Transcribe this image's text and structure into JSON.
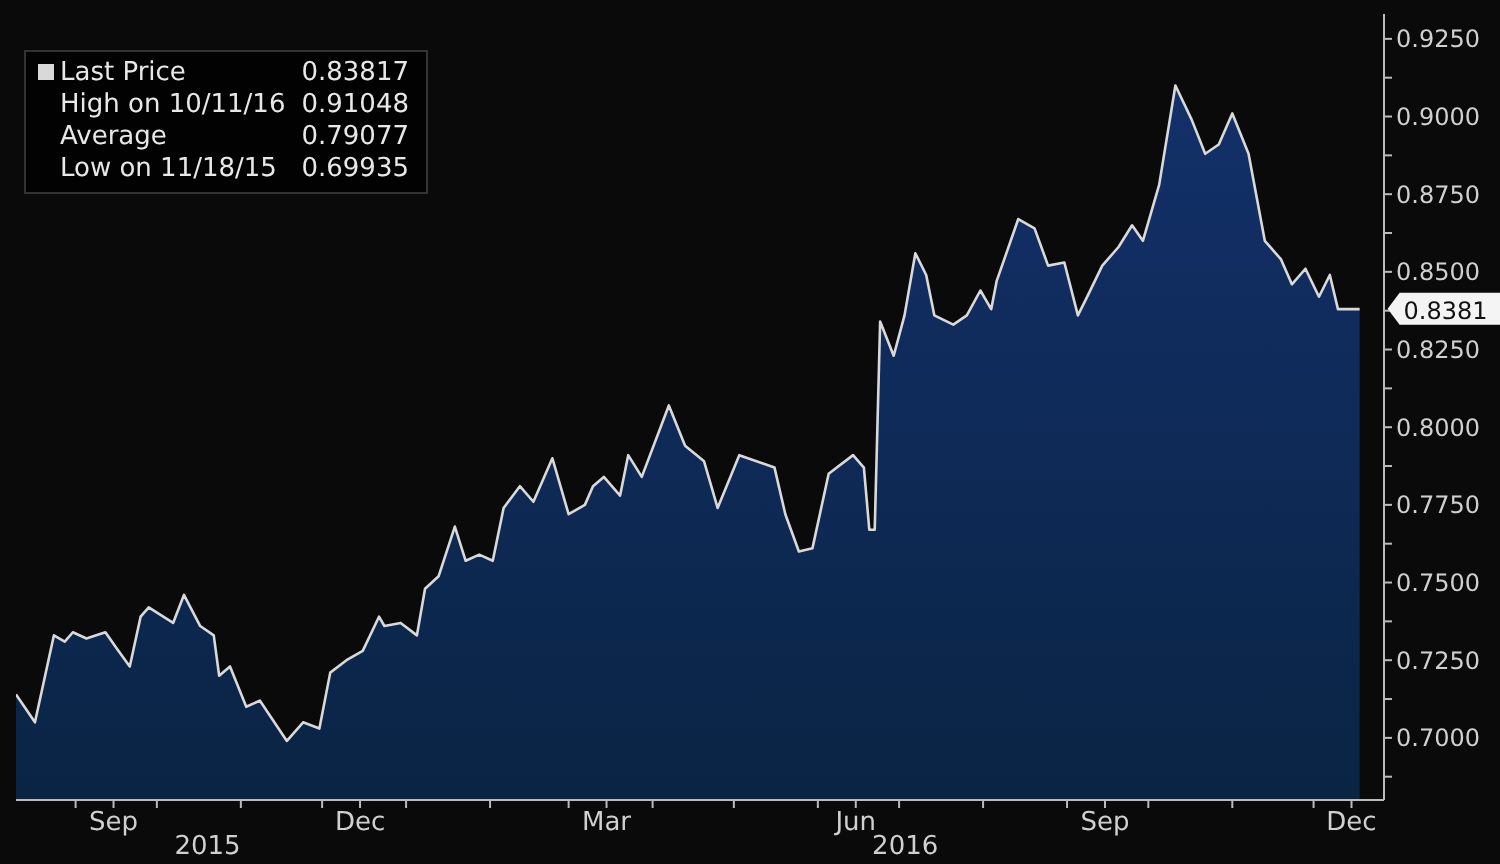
{
  "chart_data": {
    "type": "area",
    "x": [
      "2015-08-10",
      "2015-08-17",
      "2015-08-24",
      "2015-08-28",
      "2015-08-31",
      "2015-09-05",
      "2015-09-12",
      "2015-09-16",
      "2015-09-21",
      "2015-09-25",
      "2015-09-28",
      "2015-10-07",
      "2015-10-11",
      "2015-10-17",
      "2015-10-22",
      "2015-10-24",
      "2015-10-28",
      "2015-11-03",
      "2015-11-08",
      "2015-11-18",
      "2015-11-24",
      "2015-11-30",
      "2015-12-04",
      "2015-12-10",
      "2015-12-16",
      "2015-12-22",
      "2015-12-24",
      "2015-12-30",
      "2016-01-05",
      "2016-01-08",
      "2016-01-13",
      "2016-01-19",
      "2016-01-23",
      "2016-01-28",
      "2016-02-02",
      "2016-02-06",
      "2016-02-12",
      "2016-02-17",
      "2016-02-24",
      "2016-03-01",
      "2016-03-07",
      "2016-03-10",
      "2016-03-14",
      "2016-03-20",
      "2016-03-23",
      "2016-03-28",
      "2016-04-07",
      "2016-04-13",
      "2016-04-20",
      "2016-04-25",
      "2016-05-03",
      "2016-05-16",
      "2016-05-20",
      "2016-05-25",
      "2016-05-30",
      "2016-06-05",
      "2016-06-14",
      "2016-06-18",
      "2016-06-20",
      "2016-06-22",
      "2016-06-24",
      "2016-06-29",
      "2016-07-03",
      "2016-07-07",
      "2016-07-11",
      "2016-07-14",
      "2016-07-21",
      "2016-07-26",
      "2016-07-31",
      "2016-08-04",
      "2016-08-06",
      "2016-08-14",
      "2016-08-20",
      "2016-08-25",
      "2016-08-31",
      "2016-09-05",
      "2016-09-09",
      "2016-09-14",
      "2016-09-20",
      "2016-09-25",
      "2016-09-29",
      "2016-10-05",
      "2016-10-11",
      "2016-10-17",
      "2016-10-22",
      "2016-10-27",
      "2016-11-01",
      "2016-11-07",
      "2016-11-13",
      "2016-11-19",
      "2016-11-23",
      "2016-11-28",
      "2016-12-03",
      "2016-12-07",
      "2016-12-10",
      "2016-12-18"
    ],
    "series": [
      {
        "name": "Last Price",
        "color": "#d9d9d9",
        "values": [
          0.714,
          0.705,
          0.733,
          0.731,
          0.734,
          0.732,
          0.734,
          0.729,
          0.723,
          0.739,
          0.742,
          0.737,
          0.746,
          0.736,
          0.733,
          0.72,
          0.723,
          0.71,
          0.712,
          0.699,
          0.705,
          0.703,
          0.721,
          0.725,
          0.728,
          0.739,
          0.736,
          0.737,
          0.733,
          0.748,
          0.752,
          0.768,
          0.757,
          0.759,
          0.757,
          0.774,
          0.781,
          0.776,
          0.79,
          0.772,
          0.775,
          0.781,
          0.784,
          0.778,
          0.791,
          0.784,
          0.807,
          0.794,
          0.789,
          0.774,
          0.791,
          0.787,
          0.772,
          0.76,
          0.761,
          0.785,
          0.791,
          0.787,
          0.767,
          0.767,
          0.834,
          0.823,
          0.836,
          0.856,
          0.849,
          0.836,
          0.833,
          0.836,
          0.844,
          0.838,
          0.847,
          0.867,
          0.864,
          0.852,
          0.853,
          0.836,
          0.843,
          0.852,
          0.858,
          0.865,
          0.86,
          0.878,
          0.91,
          0.899,
          0.888,
          0.891,
          0.901,
          0.888,
          0.86,
          0.854,
          0.846,
          0.851,
          0.842,
          0.849,
          0.838,
          0.838
        ]
      }
    ],
    "xlim": [
      "2015-08-10",
      "2016-12-27"
    ],
    "xticks": [
      {
        "value": "2015-09-01",
        "label": null
      },
      {
        "value": "2015-09-15",
        "label": "Sep"
      },
      {
        "value": "2015-10-01",
        "label": null
      },
      {
        "value": "2015-11-01",
        "label": null
      },
      {
        "value": "2015-12-01",
        "label": null
      },
      {
        "value": "2015-12-15",
        "label": "Dec"
      },
      {
        "value": "2016-01-01",
        "label": null
      },
      {
        "value": "2016-02-01",
        "label": null
      },
      {
        "value": "2016-03-01",
        "label": null
      },
      {
        "value": "2016-03-15",
        "label": "Mar"
      },
      {
        "value": "2016-04-01",
        "label": null
      },
      {
        "value": "2016-05-01",
        "label": null
      },
      {
        "value": "2016-06-01",
        "label": null
      },
      {
        "value": "2016-06-15",
        "label": "Jun"
      },
      {
        "value": "2016-07-01",
        "label": null
      },
      {
        "value": "2016-08-01",
        "label": null
      },
      {
        "value": "2016-09-01",
        "label": null
      },
      {
        "value": "2016-09-15",
        "label": "Sep"
      },
      {
        "value": "2016-10-01",
        "label": null
      },
      {
        "value": "2016-11-01",
        "label": null
      },
      {
        "value": "2016-12-01",
        "label": null
      },
      {
        "value": "2016-12-15",
        "label": "Dec"
      }
    ],
    "ylim": [
      0.68,
      0.933
    ],
    "yticks": [
      {
        "value": 0.6875,
        "label": null
      },
      {
        "value": 0.7,
        "label": "0.7000"
      },
      {
        "value": 0.7125,
        "label": null
      },
      {
        "value": 0.725,
        "label": "0.7250"
      },
      {
        "value": 0.7375,
        "label": null
      },
      {
        "value": 0.75,
        "label": "0.7500"
      },
      {
        "value": 0.7625,
        "label": null
      },
      {
        "value": 0.775,
        "label": "0.7750"
      },
      {
        "value": 0.7875,
        "label": null
      },
      {
        "value": 0.8,
        "label": "0.8000"
      },
      {
        "value": 0.8125,
        "label": null
      },
      {
        "value": 0.825,
        "label": "0.8250"
      },
      {
        "value": 0.8375,
        "label": null
      },
      {
        "value": 0.85,
        "label": "0.8500"
      },
      {
        "value": 0.8625,
        "label": null
      },
      {
        "value": 0.875,
        "label": "0.8750"
      },
      {
        "value": 0.8875,
        "label": null
      },
      {
        "value": 0.9,
        "label": "0.9000"
      },
      {
        "value": 0.9125,
        "label": null
      },
      {
        "value": 0.925,
        "label": "0.9250"
      }
    ],
    "legend": "top left",
    "grid": false,
    "annotations": [
      "0.83817",
      "High on 10/11/16",
      "0.91048",
      "Average",
      "0.79077",
      "Low on 11/18/15",
      "0.69935",
      {
        "text": "0.8381",
        "x": "2016-12-18",
        "y": 0.8381
      },
      "2015",
      "2016"
    ]
  }
}
